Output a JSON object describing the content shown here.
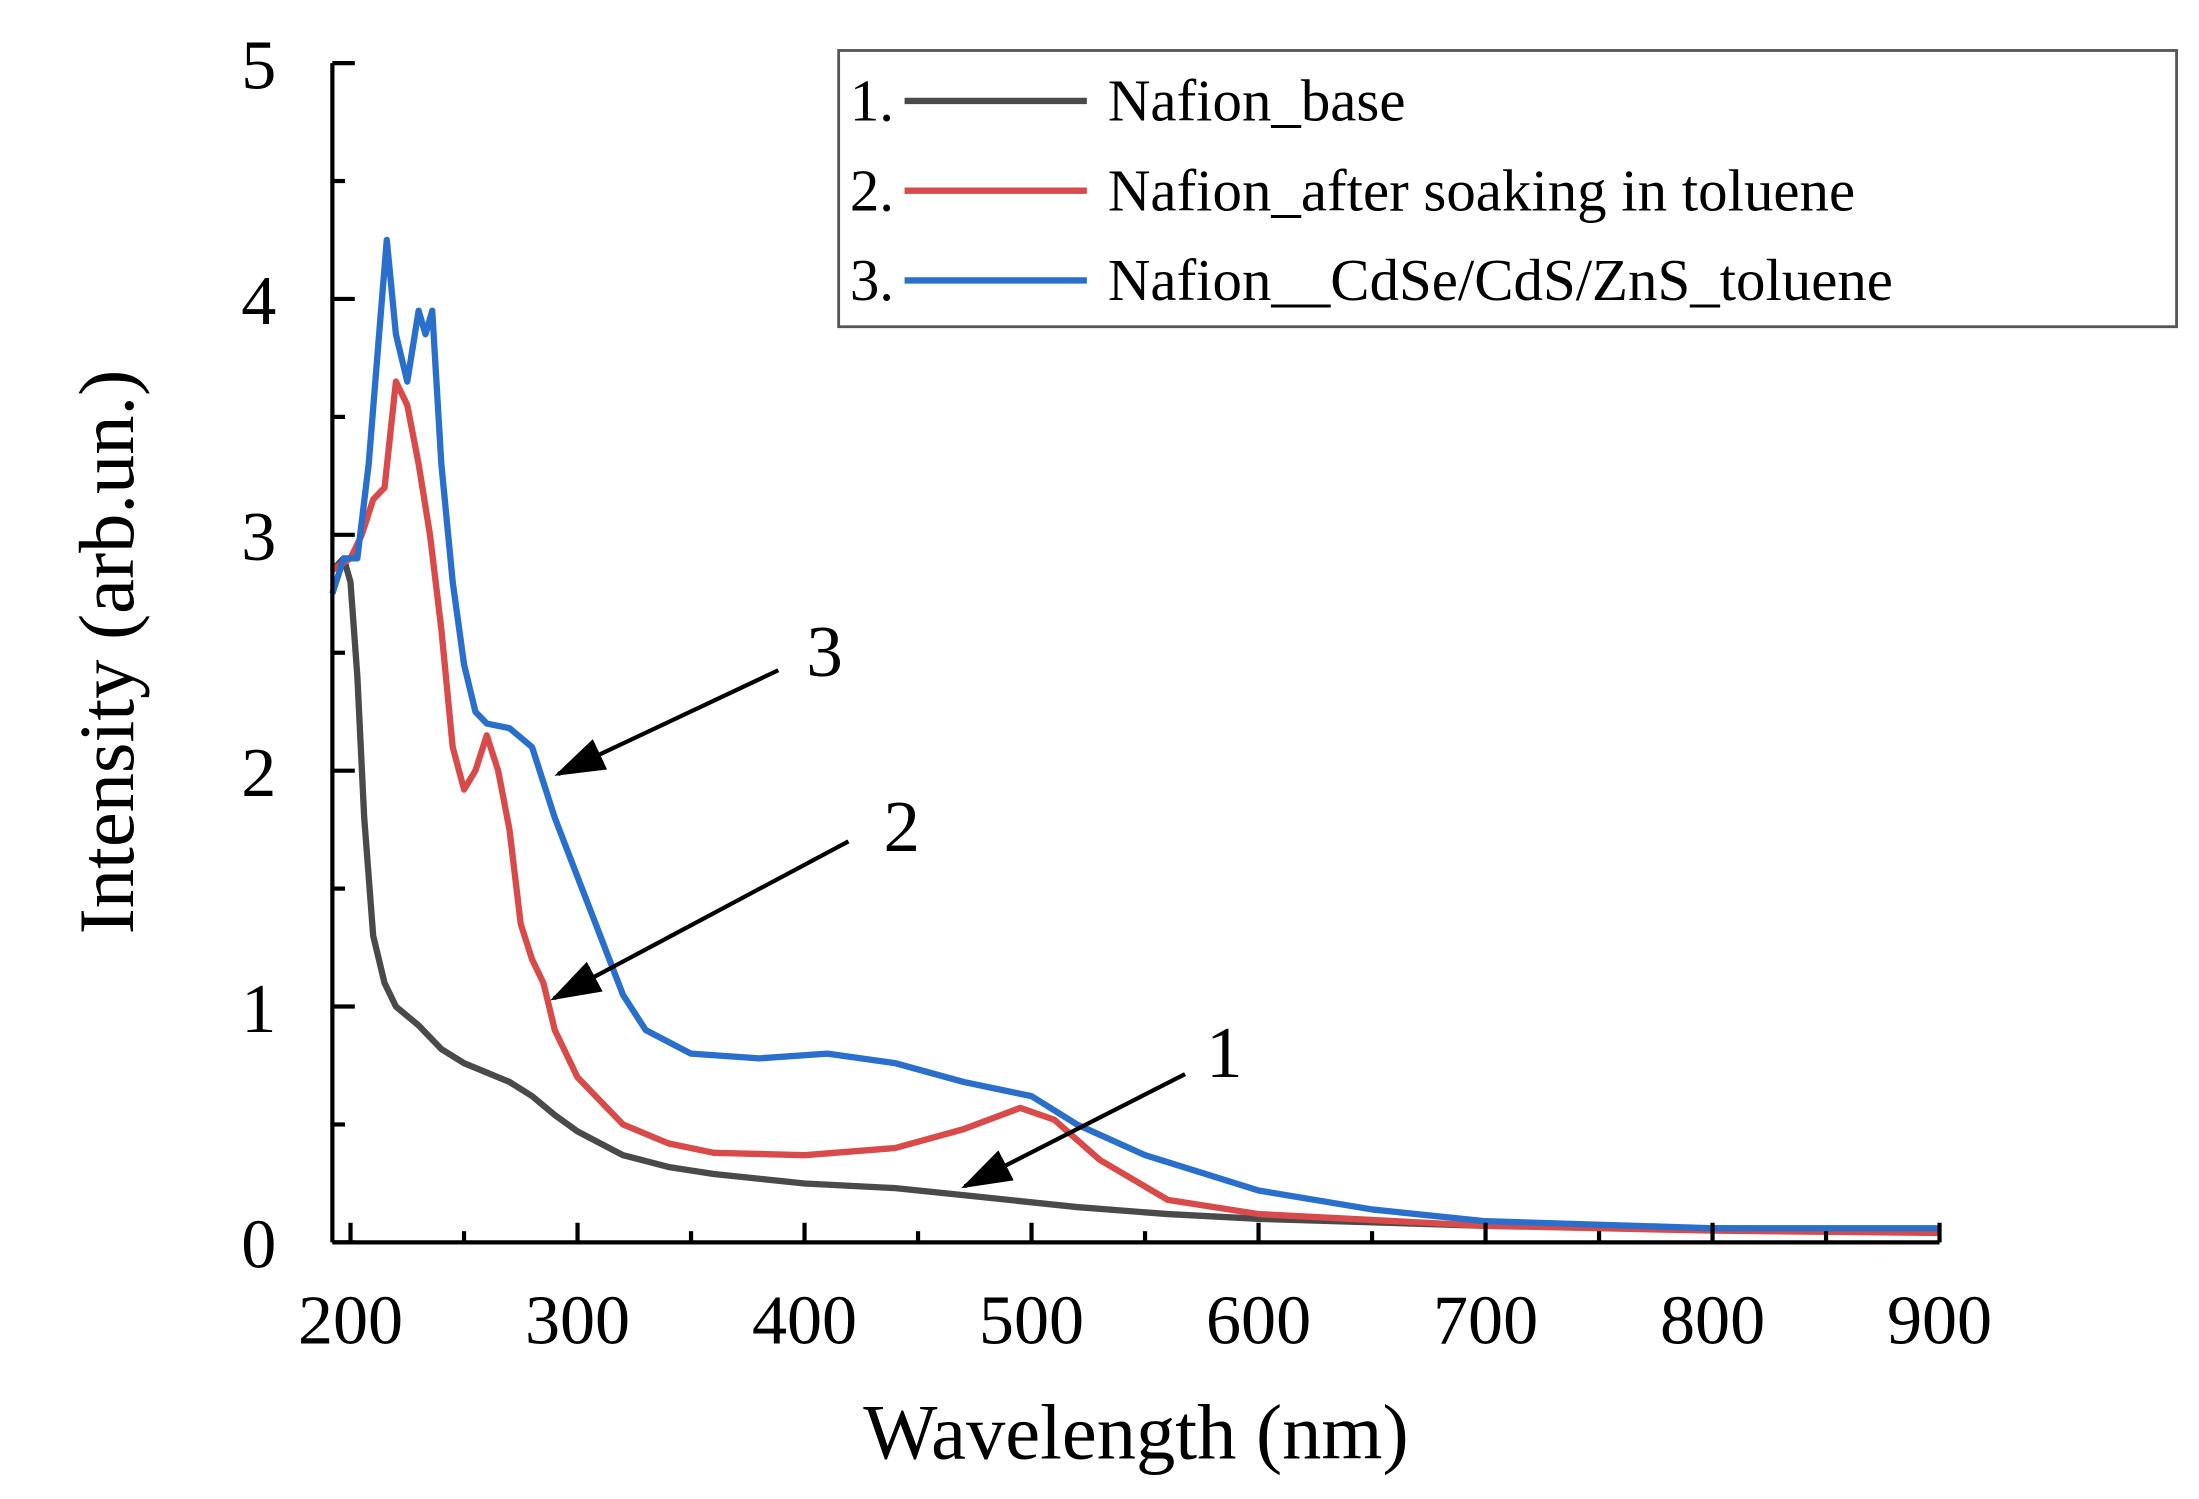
{
  "chart_data": {
    "type": "line",
    "title": "",
    "xlabel": "Wavelength (nm)",
    "ylabel": "Intensity (arb.un.)",
    "xlim": [
      192,
      900
    ],
    "ylim": [
      0,
      5
    ],
    "xticks": [
      200,
      300,
      400,
      500,
      600,
      700,
      800,
      900
    ],
    "yticks": [
      0,
      1,
      2,
      3,
      4,
      5
    ],
    "grid": false,
    "legend_position": "top-right",
    "series": [
      {
        "name": "Nafion_base",
        "prefix": "1.",
        "color": "#4a4a4a",
        "x": [
          192,
          197,
          200,
          203,
          206,
          210,
          215,
          220,
          230,
          240,
          250,
          260,
          270,
          280,
          290,
          300,
          320,
          340,
          360,
          380,
          400,
          440,
          480,
          520,
          560,
          600,
          700,
          800,
          900
        ],
        "y": [
          2.85,
          2.9,
          2.8,
          2.4,
          1.8,
          1.3,
          1.1,
          1.0,
          0.92,
          0.82,
          0.76,
          0.72,
          0.68,
          0.62,
          0.54,
          0.47,
          0.37,
          0.32,
          0.29,
          0.27,
          0.25,
          0.23,
          0.19,
          0.15,
          0.12,
          0.1,
          0.07,
          0.06,
          0.05
        ]
      },
      {
        "name": "Nafion_after soaking in toluene",
        "prefix": "2.",
        "color": "#d94a4a",
        "x": [
          192,
          200,
          205,
          210,
          215,
          220,
          225,
          230,
          235,
          240,
          245,
          250,
          255,
          260,
          265,
          270,
          275,
          280,
          285,
          290,
          300,
          320,
          340,
          360,
          400,
          440,
          470,
          495,
          510,
          530,
          560,
          600,
          700,
          800,
          900
        ],
        "y": [
          2.85,
          2.9,
          3.0,
          3.15,
          3.2,
          3.65,
          3.55,
          3.3,
          3.0,
          2.6,
          2.1,
          1.92,
          2.0,
          2.15,
          2.0,
          1.75,
          1.35,
          1.2,
          1.1,
          0.9,
          0.7,
          0.5,
          0.42,
          0.38,
          0.37,
          0.4,
          0.48,
          0.57,
          0.52,
          0.35,
          0.18,
          0.12,
          0.07,
          0.05,
          0.04
        ]
      },
      {
        "name": "Nafion__CdSe/CdS/ZnS_toluene",
        "prefix": "3.",
        "color": "#2a6fcc",
        "x": [
          192,
          197,
          203,
          208,
          213,
          216,
          220,
          225,
          230,
          233,
          236,
          240,
          245,
          250,
          255,
          260,
          270,
          280,
          290,
          300,
          310,
          320,
          330,
          350,
          380,
          410,
          440,
          470,
          500,
          520,
          550,
          600,
          650,
          700,
          800,
          900
        ],
        "y": [
          2.75,
          2.9,
          2.9,
          3.3,
          3.9,
          4.25,
          3.85,
          3.65,
          3.95,
          3.85,
          3.95,
          3.3,
          2.8,
          2.45,
          2.25,
          2.2,
          2.18,
          2.1,
          1.8,
          1.55,
          1.3,
          1.05,
          0.9,
          0.8,
          0.78,
          0.8,
          0.76,
          0.68,
          0.62,
          0.5,
          0.37,
          0.22,
          0.14,
          0.09,
          0.06,
          0.06
        ]
      }
    ],
    "annotations": [
      {
        "text": "3",
        "points_to_series": 3
      },
      {
        "text": "2",
        "points_to_series": 2
      },
      {
        "text": "1",
        "points_to_series": 1
      }
    ]
  }
}
